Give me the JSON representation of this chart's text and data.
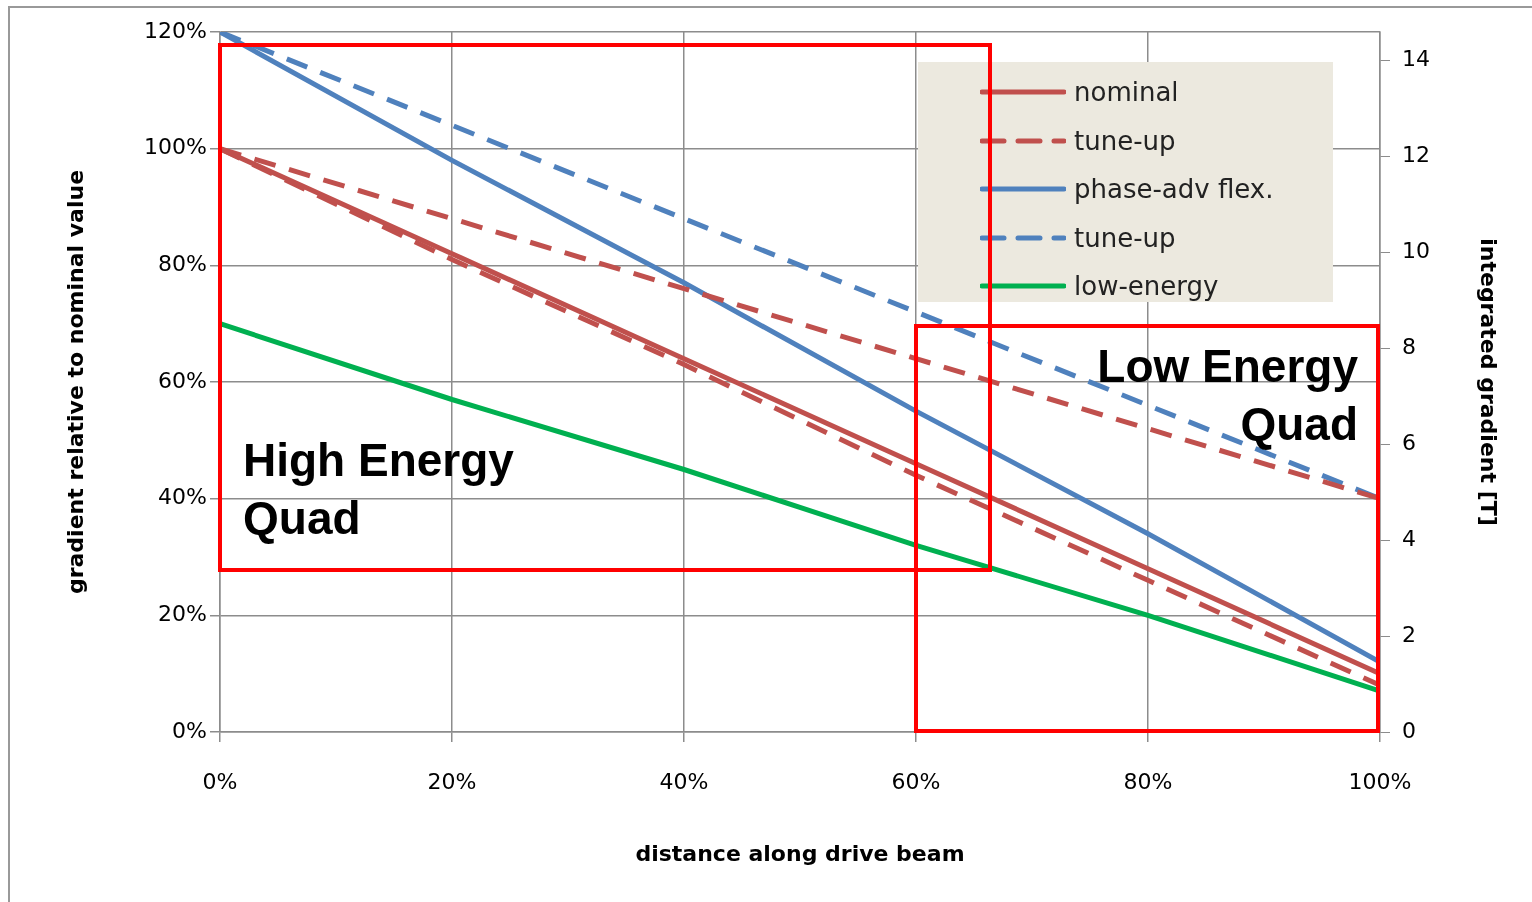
{
  "chart_data": {
    "type": "line",
    "xlabel": "distance along drive beam",
    "ylabel": "gradient relative to nominal value",
    "y2label": "integrated gradient [T]",
    "x": [
      0,
      20,
      40,
      60,
      80,
      100
    ],
    "xlim": [
      0,
      100
    ],
    "xticks": [
      {
        "value": 0,
        "label": "0%"
      },
      {
        "value": 20,
        "label": "20%"
      },
      {
        "value": 40,
        "label": "40%"
      },
      {
        "value": 60,
        "label": "60%"
      },
      {
        "value": 80,
        "label": "80%"
      },
      {
        "value": 100,
        "label": "100%"
      }
    ],
    "ylim": [
      0,
      120
    ],
    "yticks": [
      {
        "value": 0,
        "label": "0%"
      },
      {
        "value": 20,
        "label": "20%"
      },
      {
        "value": 40,
        "label": "40%"
      },
      {
        "value": 60,
        "label": "60%"
      },
      {
        "value": 80,
        "label": "80%"
      },
      {
        "value": 100,
        "label": "100%"
      },
      {
        "value": 120,
        "label": "120%"
      }
    ],
    "y2lim": [
      0,
      14.6
    ],
    "y2ticks": [
      0,
      2,
      4,
      6,
      8,
      10,
      12,
      14
    ],
    "grid": true,
    "legend": "top right",
    "marker": "none",
    "series": [
      {
        "name": "nominal",
        "color": "#c0504d",
        "line_style": "solid",
        "values": [
          100,
          82,
          64,
          46,
          28,
          10
        ]
      },
      {
        "name": "tune-up",
        "color": "#c0504d",
        "line_style": "dashed",
        "values": [
          100,
          88,
          76,
          64,
          52,
          40
        ]
      },
      {
        "name": "phase-adv flex.",
        "color": "#4f81bd",
        "line_style": "solid",
        "values": [
          120,
          98,
          77,
          55,
          34,
          12
        ]
      },
      {
        "name": "tune-up",
        "color": "#4f81bd",
        "line_style": "dashed",
        "values": [
          120,
          104,
          88,
          72,
          56,
          40
        ]
      },
      {
        "name": "low-energy",
        "color": "#00b050",
        "line_style": "solid",
        "values": [
          70,
          57,
          45,
          32,
          20,
          7
        ]
      },
      {
        "color": "#c0504d",
        "line_style": "dashed",
        "values": [
          100,
          81,
          63,
          44,
          26,
          8
        ]
      }
    ],
    "annotations": [
      "High Energy Quad",
      "Low Energy Quad"
    ]
  }
}
